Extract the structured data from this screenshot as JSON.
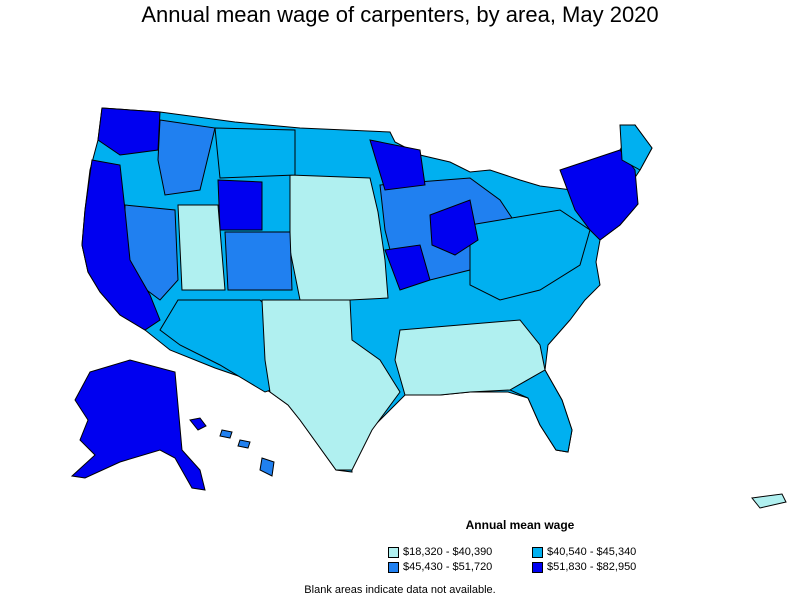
{
  "title": "Annual mean wage of carpenters, by area, May 2020",
  "legend": {
    "title": "Annual mean wage",
    "items": [
      {
        "label": "$18,320 - $40,390",
        "color": "#b0f0f0"
      },
      {
        "label": "$40,540 - $45,340",
        "color": "#00b0f0"
      },
      {
        "label": "$45,430 - $51,720",
        "color": "#2080f0"
      },
      {
        "label": "$51,830 - $82,950",
        "color": "#0000f0"
      }
    ]
  },
  "footnote": "Blank areas indicate data not available."
}
